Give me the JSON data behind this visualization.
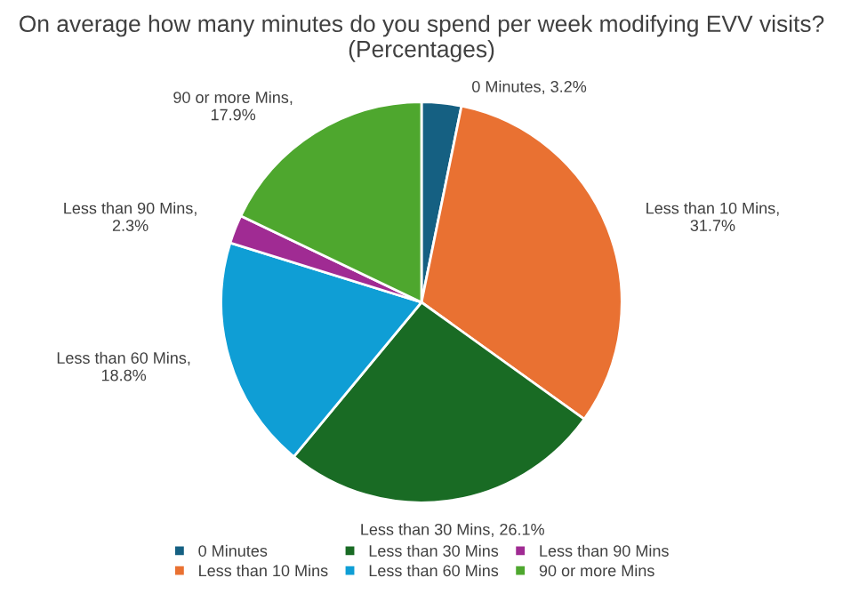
{
  "chart_data": {
    "type": "pie",
    "title": "On average how many minutes do you spend per week modifying EVV visits? (Percentages)",
    "categories": [
      "0 Minutes",
      "Less than 10 Mins",
      "Less than 30 Mins",
      "Less than 60 Mins",
      "Less than 90 Mins",
      "90 or more Mins"
    ],
    "values": [
      3.2,
      31.7,
      26.1,
      18.8,
      2.3,
      17.9
    ],
    "colors": [
      "#156082",
      "#e97132",
      "#196b24",
      "#0f9ed5",
      "#a02b93",
      "#4ea72e"
    ],
    "value_labels": [
      "0 Minutes, 3.2%",
      "Less than 10 Mins, 31.7%",
      "Less than 30 Mins, 26.1%",
      "Less than 60 Mins, 18.8%",
      "Less than 90 Mins, 2.3%",
      "90 or more Mins, 17.9%"
    ],
    "legend": "bottom"
  }
}
